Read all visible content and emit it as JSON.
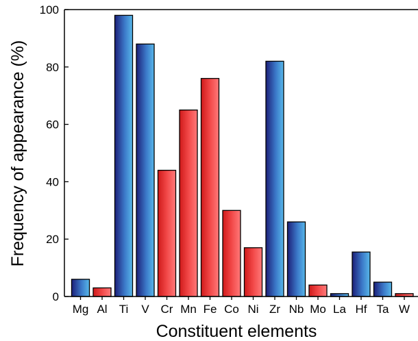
{
  "chart_data": {
    "type": "bar",
    "title": "",
    "xlabel": "Constituent elements",
    "ylabel": "Frequency of appearance (%)",
    "ylim": [
      0,
      100
    ],
    "yticks": [
      0,
      20,
      40,
      60,
      80,
      100
    ],
    "grid": false,
    "categories": [
      "Mg",
      "Al",
      "Ti",
      "V",
      "Cr",
      "Mn",
      "Fe",
      "Co",
      "Ni",
      "Zr",
      "Nb",
      "Mo",
      "La",
      "Hf",
      "Ta",
      "W"
    ],
    "values": [
      6,
      3,
      98,
      88,
      44,
      65,
      76,
      30,
      17,
      82,
      26,
      4,
      1,
      15.5,
      5,
      1
    ],
    "bar_colors": [
      "blue",
      "red",
      "blue",
      "blue",
      "red",
      "red",
      "red",
      "red",
      "red",
      "blue",
      "blue",
      "red",
      "blue",
      "blue",
      "blue",
      "red"
    ],
    "colors": {
      "blue_dark": "#1c1f78",
      "blue_light": "#4aa6de",
      "red_dark": "#d41e1e",
      "red_light": "#ff6e6e",
      "outline": "#000000"
    }
  }
}
